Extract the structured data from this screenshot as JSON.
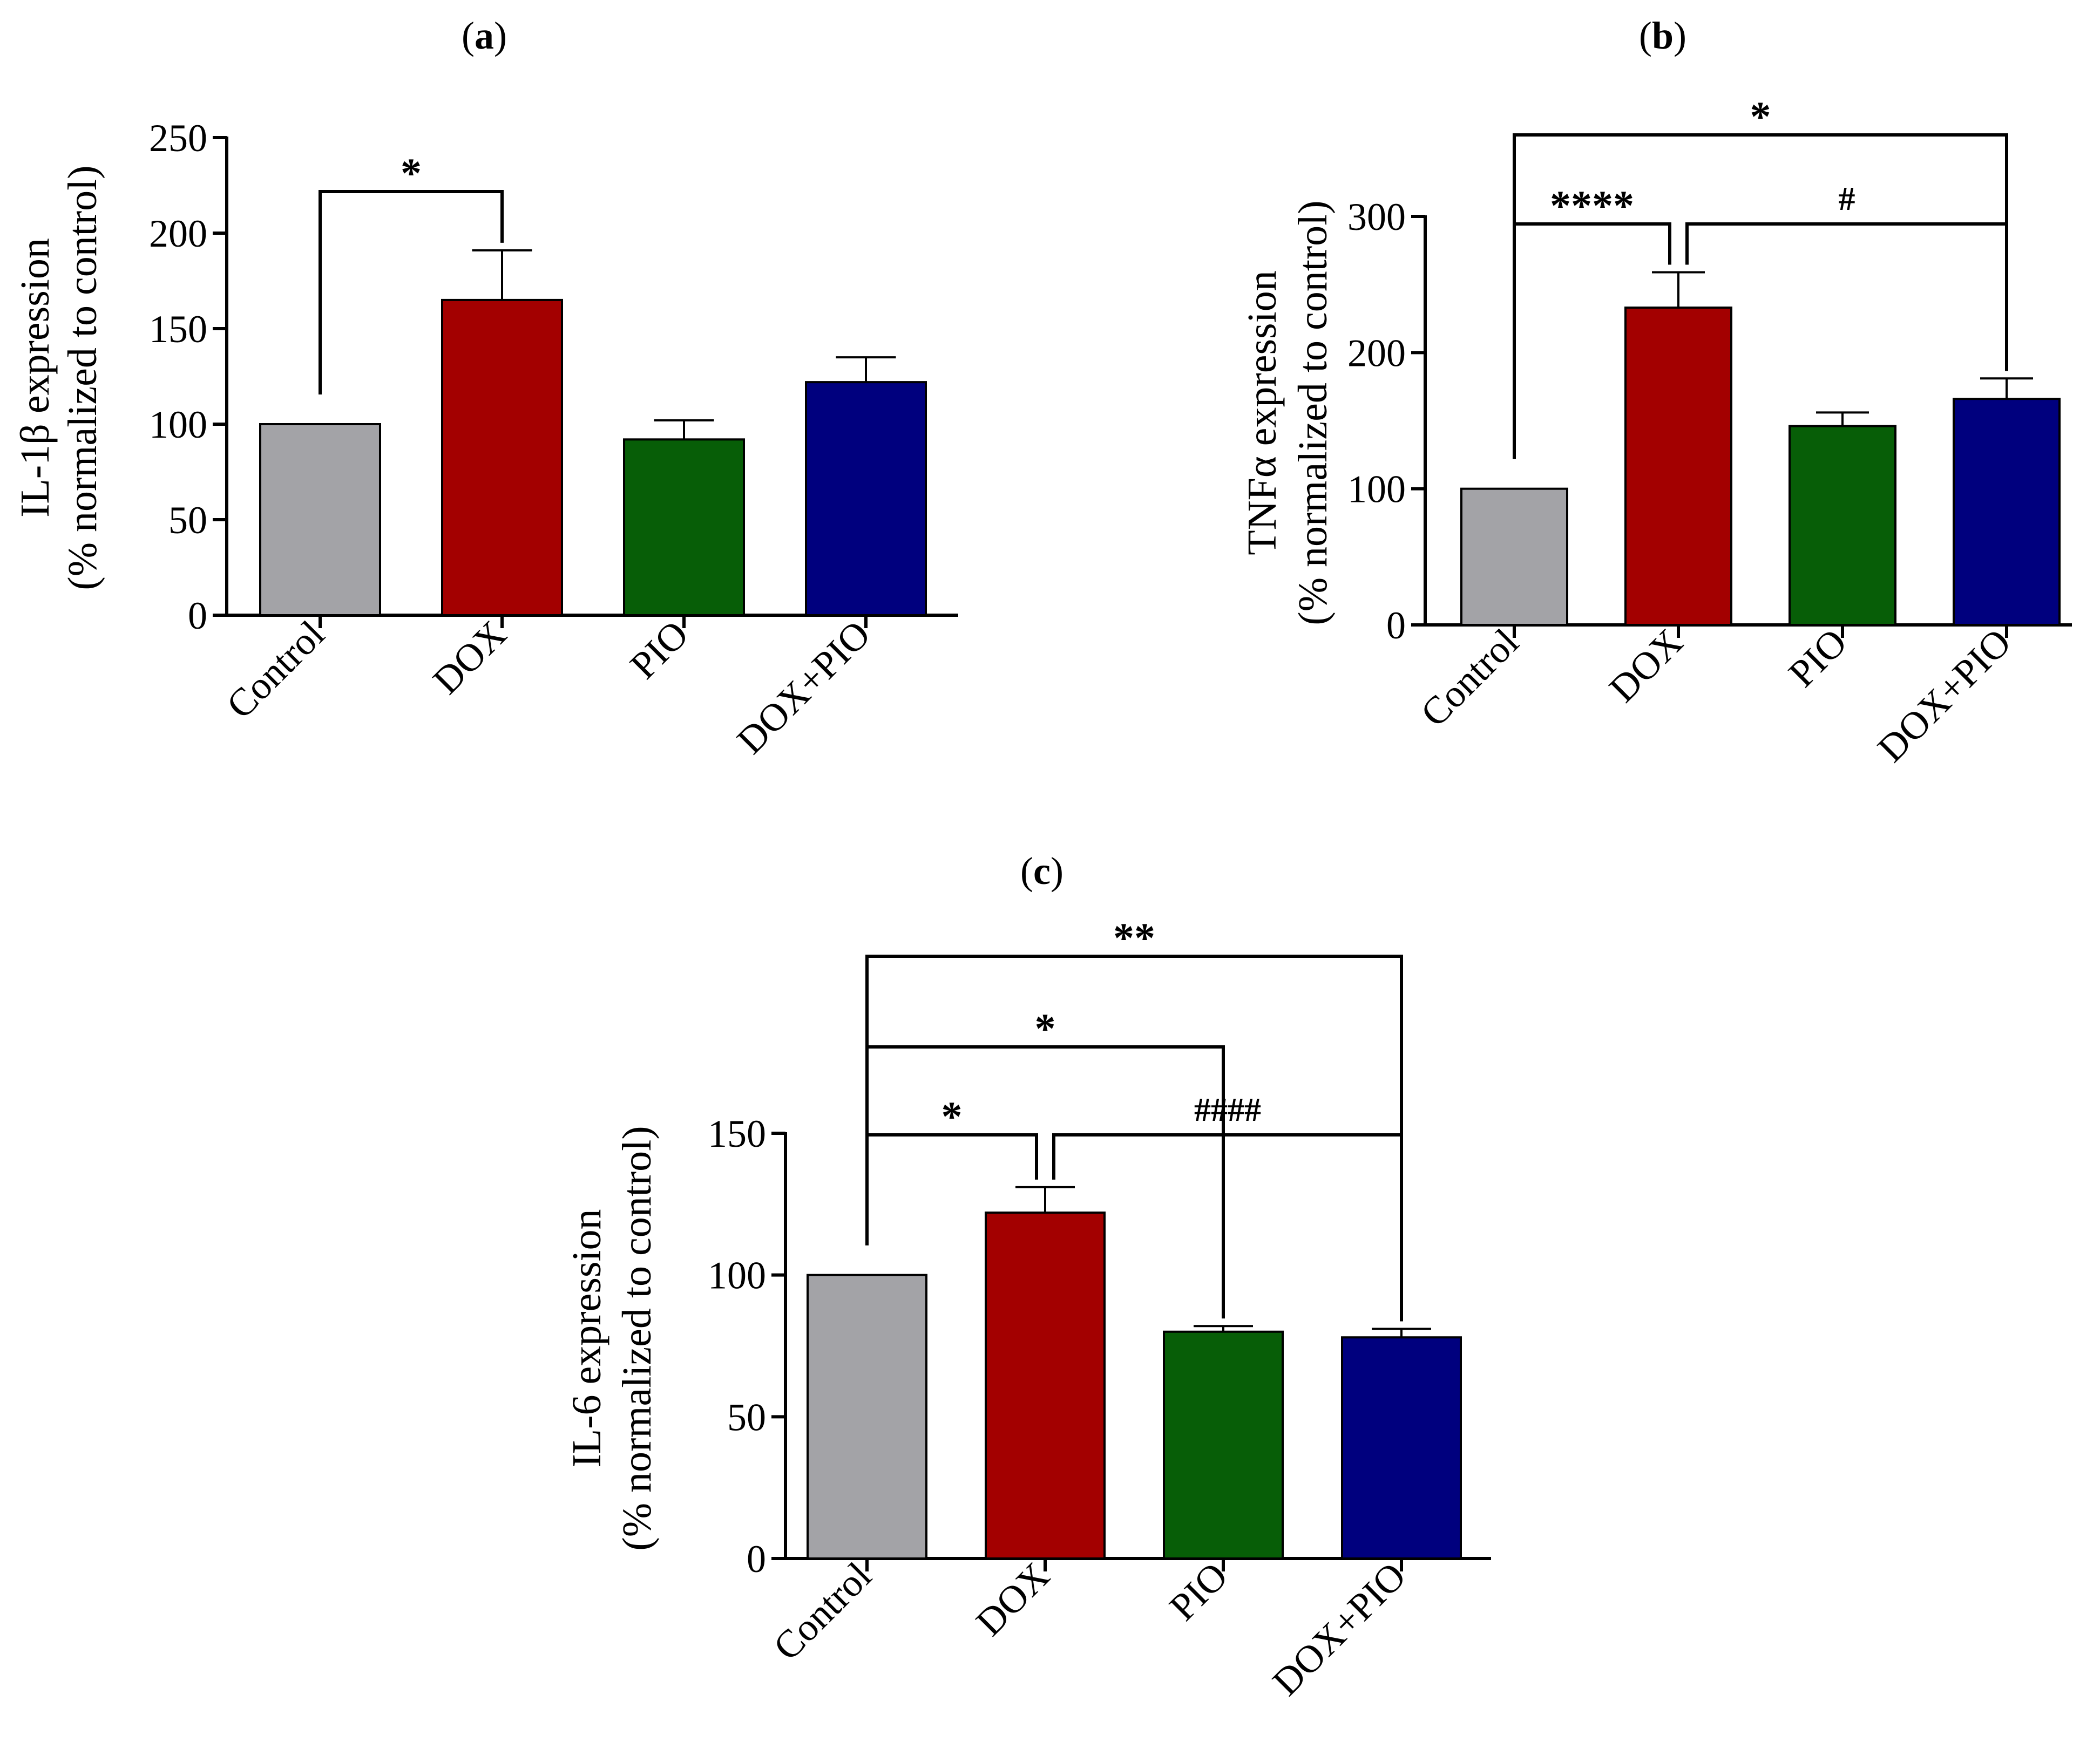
{
  "chart_data": [
    {
      "panel": "(a)",
      "panel_letter": "a",
      "type": "bar",
      "ylabel": [
        "IL-1β expression",
        "(% normalized to control)"
      ],
      "categories": [
        "Control",
        "DOX",
        "PIO",
        "DOX+PIO"
      ],
      "values": [
        100,
        165,
        92,
        122
      ],
      "errors": [
        0,
        26,
        10,
        13
      ],
      "colors": [
        "#a3a3a7",
        "#a30000",
        "#075e07",
        "#00007e"
      ],
      "ylim": [
        0,
        250
      ],
      "yticks": [
        0,
        50,
        100,
        150,
        200,
        250
      ],
      "significance": [
        {
          "from": 0,
          "to": 1,
          "label": "*",
          "level": 1
        }
      ]
    },
    {
      "panel": "(b)",
      "panel_letter": "b",
      "type": "bar",
      "ylabel": [
        "TNFα expression",
        "(% normalized to control)"
      ],
      "categories": [
        "Control",
        "DOX",
        "PIO",
        "DOX+PIO"
      ],
      "values": [
        100,
        233,
        146,
        166
      ],
      "errors": [
        0,
        26,
        10,
        15
      ],
      "colors": [
        "#a3a3a7",
        "#a30000",
        "#075e07",
        "#00007e"
      ],
      "ylim": [
        0,
        300
      ],
      "yticks": [
        0,
        100,
        200,
        300
      ],
      "significance": [
        {
          "from": 0,
          "to": 1,
          "label": "****",
          "level": 1
        },
        {
          "from": 1,
          "to": 3,
          "label": "#",
          "level": 1
        },
        {
          "from": 0,
          "to": 3,
          "label": "*",
          "level": 2
        }
      ]
    },
    {
      "panel": "(c)",
      "panel_letter": "c",
      "type": "bar",
      "ylabel": [
        "IL-6 expression",
        "(% normalized to control)"
      ],
      "categories": [
        "Control",
        "DOX",
        "PIO",
        "DOX+PIO"
      ],
      "values": [
        100,
        122,
        80,
        78
      ],
      "errors": [
        0,
        9,
        2,
        3
      ],
      "colors": [
        "#a3a3a7",
        "#a30000",
        "#075e07",
        "#00007e"
      ],
      "ylim": [
        0,
        150
      ],
      "yticks": [
        0,
        50,
        100,
        150
      ],
      "significance": [
        {
          "from": 0,
          "to": 1,
          "label": "*",
          "level": 1
        },
        {
          "from": 1,
          "to": 3,
          "label": "####",
          "level": 1
        },
        {
          "from": 0,
          "to": 2,
          "label": "*",
          "level": 2
        },
        {
          "from": 0,
          "to": 3,
          "label": "**",
          "level": 3
        }
      ]
    }
  ]
}
